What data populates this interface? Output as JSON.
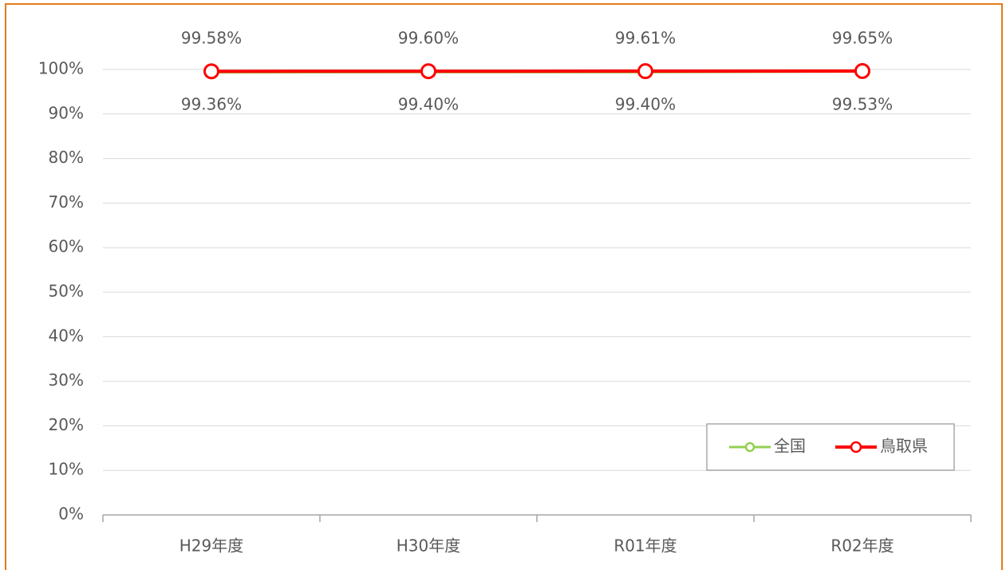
{
  "chart_data": {
    "type": "line",
    "categories": [
      "H29年度",
      "H30年度",
      "R01年度",
      "R02年度"
    ],
    "series": [
      {
        "name": "全国",
        "color": "#92d050",
        "values": [
          99.36,
          99.4,
          99.4,
          99.53
        ],
        "value_labels": [
          "99.36%",
          "99.40%",
          "99.40%",
          "99.53%"
        ]
      },
      {
        "name": "鳥取県",
        "color": "#ff0000",
        "values": [
          99.58,
          99.6,
          99.61,
          99.65
        ],
        "value_labels": [
          "99.58%",
          "99.60%",
          "99.61%",
          "99.65%"
        ]
      }
    ],
    "ylim": [
      0,
      100
    ],
    "yticks": [
      {
        "value": 0,
        "label": "0%"
      },
      {
        "value": 10,
        "label": "10%"
      },
      {
        "value": 20,
        "label": "20%"
      },
      {
        "value": 30,
        "label": "30%"
      },
      {
        "value": 40,
        "label": "40%"
      },
      {
        "value": 50,
        "label": "50%"
      },
      {
        "value": 60,
        "label": "60%"
      },
      {
        "value": 70,
        "label": "70%"
      },
      {
        "value": 80,
        "label": "80%"
      },
      {
        "value": 90,
        "label": "90%"
      },
      {
        "value": 100,
        "label": "100%"
      }
    ],
    "grid": true,
    "legend": "lower right"
  }
}
